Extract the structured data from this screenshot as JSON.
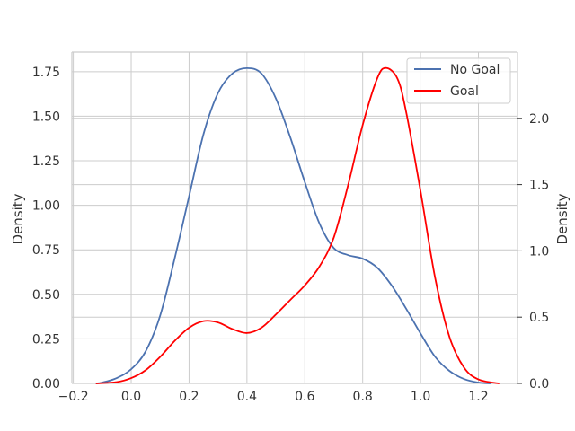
{
  "chart_data": {
    "type": "line",
    "title": "",
    "xlabel": "",
    "ylabel_left": "Density",
    "ylabel_right": "Density",
    "xlim": [
      -0.205,
      1.335
    ],
    "ylim_left": [
      0,
      1.86
    ],
    "ylim_right": [
      0,
      2.5
    ],
    "x_ticks": [
      -0.2,
      0.0,
      0.2,
      0.4,
      0.6,
      0.8,
      1.0,
      1.2
    ],
    "x_tick_labels": [
      "−0.2",
      "0.0",
      "0.2",
      "0.4",
      "0.6",
      "0.8",
      "1.0",
      "1.2"
    ],
    "y_left_ticks": [
      0,
      0.25,
      0.5,
      0.75,
      1.0,
      1.25,
      1.5,
      1.75
    ],
    "y_left_tick_labels": [
      "0.00",
      "0.25",
      "0.50",
      "0.75",
      "1.00",
      "1.25",
      "1.50",
      "1.75"
    ],
    "y_right_ticks": [
      0,
      0.5,
      1.0,
      1.5,
      2.0
    ],
    "y_right_tick_labels": [
      "0.0",
      "0.5",
      "1.0",
      "1.5",
      "2.0"
    ],
    "grid": true,
    "legend": "top-right",
    "series": [
      {
        "name": "No Goal",
        "color": "#4c72b0",
        "axis": "left",
        "x": [
          -0.12,
          -0.1,
          -0.05,
          0.0,
          0.05,
          0.1,
          0.15,
          0.2,
          0.25,
          0.3,
          0.35,
          0.4,
          0.45,
          0.5,
          0.55,
          0.6,
          0.65,
          0.7,
          0.75,
          0.8,
          0.85,
          0.9,
          0.95,
          1.0,
          1.05,
          1.1,
          1.15,
          1.2,
          1.24
        ],
        "y": [
          0.0,
          0.005,
          0.03,
          0.08,
          0.18,
          0.38,
          0.7,
          1.05,
          1.4,
          1.63,
          1.74,
          1.77,
          1.74,
          1.6,
          1.38,
          1.13,
          0.9,
          0.76,
          0.72,
          0.7,
          0.65,
          0.55,
          0.42,
          0.28,
          0.15,
          0.07,
          0.025,
          0.005,
          0.0
        ]
      },
      {
        "name": "Goal",
        "color": "#ff0000",
        "axis": "right",
        "x": [
          -0.12,
          -0.05,
          0.0,
          0.05,
          0.1,
          0.15,
          0.2,
          0.25,
          0.3,
          0.35,
          0.4,
          0.45,
          0.5,
          0.55,
          0.6,
          0.65,
          0.7,
          0.75,
          0.8,
          0.85,
          0.88,
          0.92,
          0.95,
          1.0,
          1.05,
          1.1,
          1.15,
          1.2,
          1.27
        ],
        "y": [
          0.0,
          0.01,
          0.04,
          0.1,
          0.2,
          0.32,
          0.42,
          0.47,
          0.46,
          0.41,
          0.38,
          0.42,
          0.52,
          0.63,
          0.74,
          0.88,
          1.1,
          1.5,
          1.95,
          2.3,
          2.38,
          2.3,
          2.05,
          1.45,
          0.8,
          0.35,
          0.12,
          0.03,
          0.0
        ]
      }
    ]
  }
}
